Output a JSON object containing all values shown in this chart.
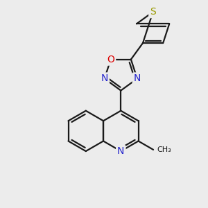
{
  "bg_color": "#ececec",
  "bond_color": "#1a1a1a",
  "bond_width": 1.6,
  "atom_colors": {
    "S": "#999900",
    "O": "#dd0000",
    "N": "#2222cc",
    "C": "#1a1a1a"
  },
  "font_size_atom": 10,
  "font_size_methyl": 9,
  "BL": 30
}
